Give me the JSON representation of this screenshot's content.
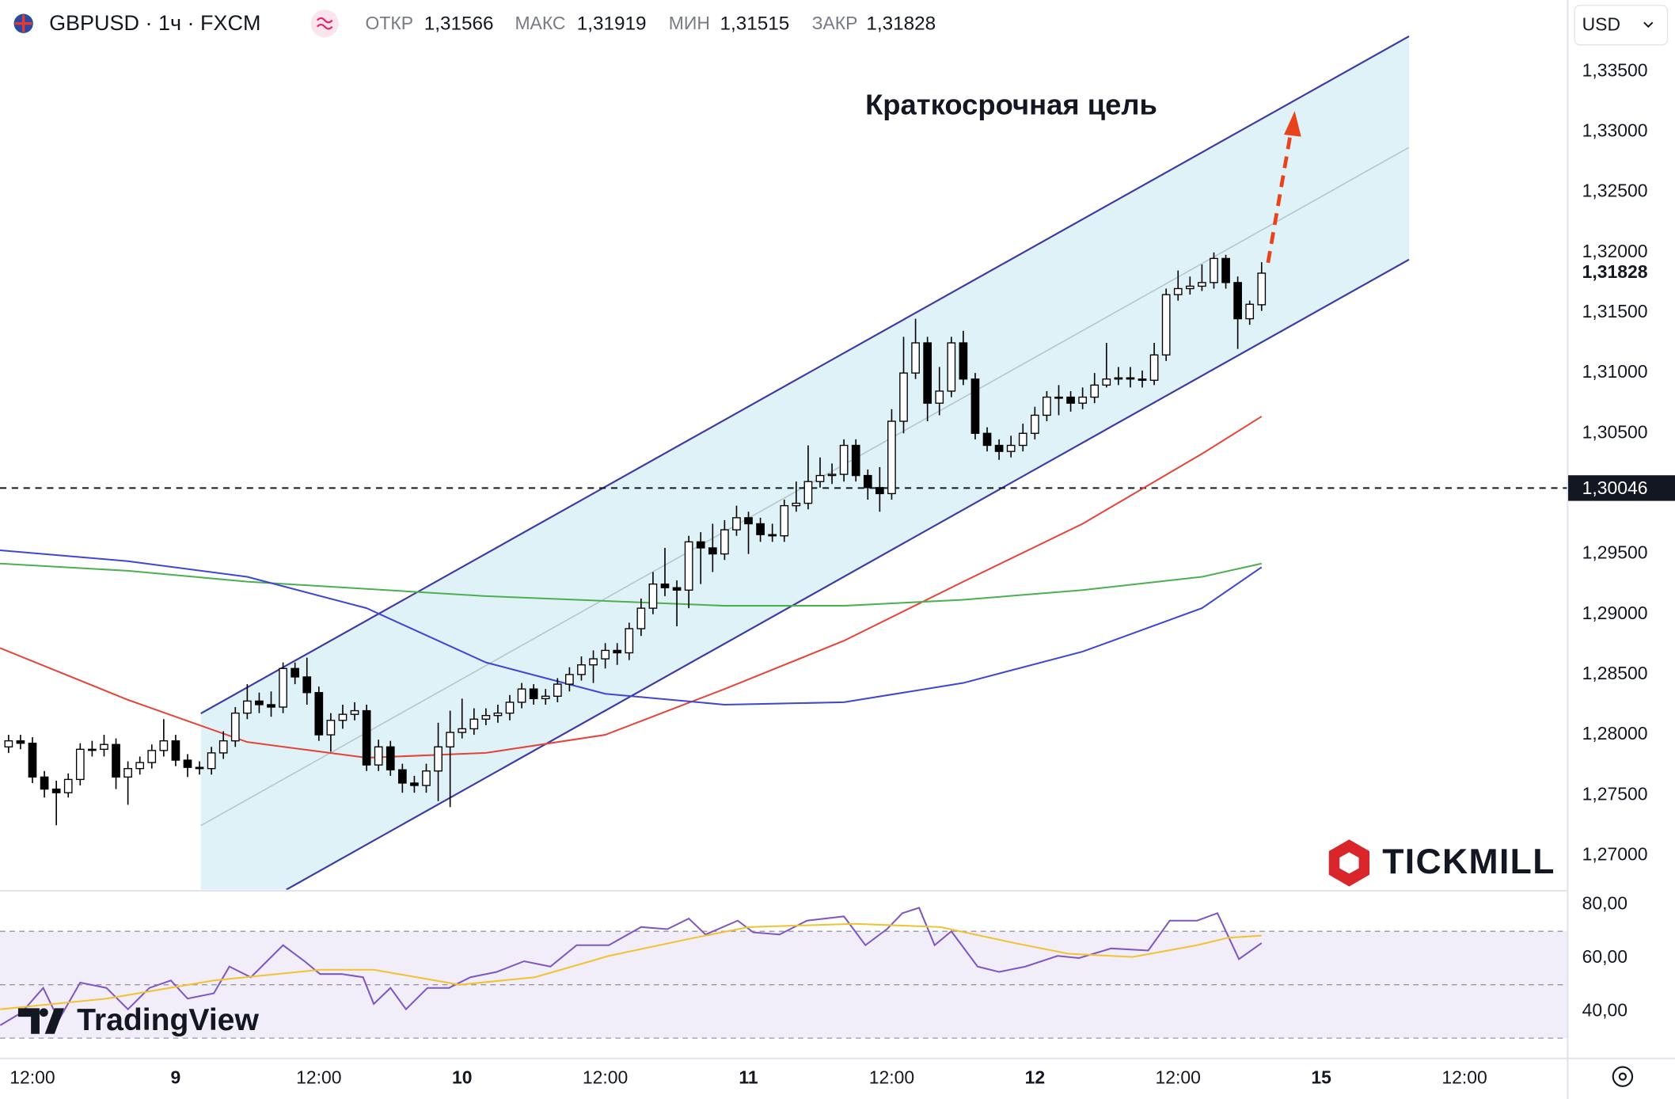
{
  "header": {
    "symbol": "GBPUSD · 1ч · FXCM",
    "ohlc": [
      {
        "label": "ОТКР",
        "value": "1,31566"
      },
      {
        "label": "МАКС",
        "value": "1,31919"
      },
      {
        "label": "МИН",
        "value": "1,31515"
      },
      {
        "label": "ЗАКР",
        "value": "1,31828"
      }
    ]
  },
  "currency": "USD",
  "watermarks": [
    "TICKMILL",
    "TradingView"
  ],
  "chart_data": {
    "type": "candlestick",
    "open": [
      1.279,
      1.2795,
      1.2793,
      1.2765,
      1.2755,
      1.2752,
      1.2763,
      1.2788,
      1.2788,
      1.2792,
      1.2765,
      1.2772,
      1.2777,
      1.2787,
      1.2795,
      1.2779,
      1.2773,
      1.2772,
      1.2785,
      1.2795,
      1.2818,
      1.2828,
      1.2825,
      1.2823,
      1.2855,
      1.2848,
      1.2835,
      1.28,
      1.2812,
      1.2817,
      1.282,
      1.2775,
      1.279,
      1.2771,
      1.276,
      1.2758,
      1.277,
      1.279,
      1.2802,
      1.2805,
      1.2813,
      1.2816,
      1.2818,
      1.2827,
      1.2838,
      1.283,
      1.2832,
      1.2842,
      1.285,
      1.2858,
      1.2863,
      1.287,
      1.2868,
      1.2888,
      1.2905,
      1.2925,
      1.2922,
      1.292,
      1.296,
      1.2955,
      1.295,
      1.297,
      1.298,
      1.2975,
      1.2966,
      1.2965,
      1.299,
      1.2992,
      1.301,
      1.3015,
      1.3016,
      1.304,
      1.3015,
      1.3005,
      1.3,
      1.306,
      1.31,
      1.3125,
      1.3075,
      1.3085,
      1.3125,
      1.3095,
      1.305,
      1.304,
      1.3035,
      1.304,
      1.305,
      1.3065,
      1.308,
      1.308,
      1.3075,
      1.308,
      1.309,
      1.3095,
      1.3096,
      1.3095,
      1.3094,
      1.3115,
      1.3165,
      1.317,
      1.3172,
      1.3175,
      1.3195,
      1.3175,
      1.3145,
      1.31566
    ],
    "high": [
      1.28,
      1.28,
      1.2798,
      1.277,
      1.2762,
      1.2768,
      1.2793,
      1.2795,
      1.28,
      1.2797,
      1.2778,
      1.2782,
      1.2792,
      1.2813,
      1.28,
      1.2784,
      1.2778,
      1.279,
      1.2803,
      1.2823,
      1.2842,
      1.2835,
      1.2836,
      1.286,
      1.286,
      1.2864,
      1.284,
      1.2818,
      1.2825,
      1.2827,
      1.2825,
      1.2796,
      1.2795,
      1.2776,
      1.2766,
      1.2776,
      1.281,
      1.282,
      1.283,
      1.2822,
      1.2822,
      1.2825,
      1.2833,
      1.2843,
      1.2842,
      1.2838,
      1.2847,
      1.2856,
      1.2865,
      1.287,
      1.2876,
      1.2876,
      1.2893,
      1.2913,
      1.2935,
      1.2955,
      1.2928,
      1.2965,
      1.2968,
      1.2975,
      1.2978,
      1.299,
      1.2985,
      1.298,
      1.2975,
      1.2995,
      1.301,
      1.304,
      1.303,
      1.3025,
      1.3045,
      1.3045,
      1.302,
      1.3022,
      1.307,
      1.313,
      1.3145,
      1.313,
      1.3105,
      1.313,
      1.3135,
      1.31,
      1.3055,
      1.3045,
      1.3048,
      1.3058,
      1.3072,
      1.3085,
      1.309,
      1.3085,
      1.3088,
      1.31,
      1.3125,
      1.3105,
      1.3105,
      1.3102,
      1.3125,
      1.317,
      1.3185,
      1.318,
      1.319,
      1.32,
      1.3198,
      1.318,
      1.316,
      1.31919
    ],
    "low": [
      1.2785,
      1.2788,
      1.276,
      1.2748,
      1.2725,
      1.2748,
      1.2758,
      1.2782,
      1.2782,
      1.2755,
      1.2742,
      1.2767,
      1.2772,
      1.2782,
      1.2774,
      1.2765,
      1.2767,
      1.2767,
      1.278,
      1.279,
      1.2813,
      1.2818,
      1.2815,
      1.2818,
      1.2842,
      1.2825,
      1.2795,
      1.2786,
      1.2805,
      1.2812,
      1.277,
      1.277,
      1.2766,
      1.2752,
      1.2752,
      1.2752,
      1.2745,
      1.274,
      1.2797,
      1.28,
      1.2808,
      1.281,
      1.2812,
      1.2822,
      1.2825,
      1.2825,
      1.2827,
      1.2836,
      1.2845,
      1.2843,
      1.2855,
      1.2858,
      1.2862,
      1.2882,
      1.29,
      1.2915,
      1.289,
      1.2905,
      1.2925,
      1.2935,
      1.2945,
      1.2965,
      1.295,
      1.296,
      1.296,
      1.296,
      1.2985,
      1.2987,
      1.3005,
      1.3008,
      1.301,
      1.301,
      1.2995,
      1.2985,
      1.2995,
      1.305,
      1.3095,
      1.306,
      1.3065,
      1.308,
      1.309,
      1.3045,
      1.3035,
      1.3028,
      1.303,
      1.3035,
      1.3045,
      1.306,
      1.3065,
      1.3068,
      1.307,
      1.3075,
      1.3088,
      1.309,
      1.3088,
      1.3088,
      1.309,
      1.311,
      1.316,
      1.3165,
      1.3168,
      1.317,
      1.317,
      1.312,
      1.314,
      1.31515
    ],
    "close": [
      1.2795,
      1.2793,
      1.2765,
      1.2755,
      1.2752,
      1.2763,
      1.2788,
      1.2788,
      1.2792,
      1.2765,
      1.2772,
      1.2777,
      1.2787,
      1.2795,
      1.2779,
      1.2773,
      1.2772,
      1.2785,
      1.2795,
      1.2818,
      1.2828,
      1.2825,
      1.2823,
      1.2855,
      1.2848,
      1.2835,
      1.28,
      1.2812,
      1.2817,
      1.282,
      1.2775,
      1.279,
      1.2771,
      1.276,
      1.2758,
      1.277,
      1.279,
      1.2802,
      1.2805,
      1.2813,
      1.2816,
      1.2818,
      1.2827,
      1.2838,
      1.283,
      1.2832,
      1.2842,
      1.285,
      1.2858,
      1.2863,
      1.287,
      1.2868,
      1.2888,
      1.2905,
      1.2925,
      1.2922,
      1.292,
      1.296,
      1.2955,
      1.295,
      1.297,
      1.298,
      1.2975,
      1.2966,
      1.2965,
      1.299,
      1.2992,
      1.301,
      1.3015,
      1.3016,
      1.304,
      1.3015,
      1.3005,
      1.3,
      1.306,
      1.31,
      1.3125,
      1.3075,
      1.3085,
      1.3125,
      1.3095,
      1.305,
      1.304,
      1.3035,
      1.304,
      1.305,
      1.3065,
      1.308,
      1.308,
      1.3075,
      1.308,
      1.309,
      1.3095,
      1.3096,
      1.3095,
      1.3094,
      1.3115,
      1.3165,
      1.317,
      1.3172,
      1.3175,
      1.3195,
      1.3175,
      1.3145,
      1.3157,
      1.31828
    ],
    "up_color": "#ffffff",
    "down_color": "#000000",
    "xlim": [
      -0.72,
      130.6
    ],
    "xticks": [
      {
        "value": 2,
        "label": "12:00"
      },
      {
        "value": 14,
        "label": "9"
      },
      {
        "value": 26,
        "label": "12:00"
      },
      {
        "value": 38,
        "label": "10"
      },
      {
        "value": 50,
        "label": "12:00"
      },
      {
        "value": 62,
        "label": "11"
      },
      {
        "value": 74,
        "label": "12:00"
      },
      {
        "value": 86,
        "label": "12"
      },
      {
        "value": 98,
        "label": "12:00"
      },
      {
        "value": 110,
        "label": "15"
      },
      {
        "value": 122,
        "label": "12:00"
      }
    ],
    "ylim": [
      1.26716,
      1.34093
    ],
    "yticks": [
      {
        "value": 1.27,
        "label": "1,27000"
      },
      {
        "value": 1.275,
        "label": "1,27500"
      },
      {
        "value": 1.28,
        "label": "1,28000"
      },
      {
        "value": 1.285,
        "label": "1,28500"
      },
      {
        "value": 1.29,
        "label": "1,29000"
      },
      {
        "value": 1.295,
        "label": "1,29500"
      },
      {
        "value": 1.3,
        "label": "1,30000"
      },
      {
        "value": 1.305,
        "label": "1,30500"
      },
      {
        "value": 1.31,
        "label": "1,31000"
      },
      {
        "value": 1.315,
        "label": "1,31500"
      },
      {
        "value": 1.32,
        "label": "1,32000"
      },
      {
        "value": 1.325,
        "label": "1,32500"
      },
      {
        "value": 1.33,
        "label": "1,33000"
      },
      {
        "value": 1.335,
        "label": "1,33500"
      }
    ],
    "indicators": [
      {
        "color": "#e5443a",
        "x": [
          -0.72,
          10,
          20,
          30,
          40,
          50,
          60,
          70,
          80,
          90,
          100,
          105
        ],
        "values": [
          1.2872,
          1.2829,
          1.2794,
          1.2781,
          1.2785,
          1.28,
          1.2838,
          1.2878,
          1.2927,
          1.2975,
          1.3033,
          1.3064
        ]
      },
      {
        "color": "#4caf50",
        "x": [
          -0.72,
          10,
          20,
          30,
          40,
          50,
          60,
          70,
          80,
          90,
          100,
          105
        ],
        "values": [
          1.2942,
          1.2936,
          1.2927,
          1.2921,
          1.2915,
          1.2911,
          1.2907,
          1.2907,
          1.2912,
          1.292,
          1.2931,
          1.2942
        ]
      },
      {
        "color": "#3f46d6",
        "x": [
          -0.72,
          10,
          20,
          30,
          40,
          50,
          60,
          70,
          80,
          90,
          100,
          105
        ],
        "values": [
          1.2953,
          1.2944,
          1.2931,
          1.2905,
          1.286,
          1.2834,
          1.2825,
          1.2827,
          1.2843,
          1.2869,
          1.2905,
          1.2939
        ]
      }
    ],
    "level": {
      "value": 1.30046,
      "label": "1,30046"
    },
    "last_price": {
      "value": 1.31828,
      "label": "1,31828"
    },
    "annotation": "Краткосрочная цель",
    "rsi": {
      "ylim": [
        22.8,
        84.8
      ],
      "yticks": [
        {
          "value": 80,
          "label": "80,00"
        },
        {
          "value": 60,
          "label": "60,00"
        },
        {
          "value": 40,
          "label": "40,00"
        }
      ],
      "bands": [
        70,
        50,
        30
      ],
      "series": [
        {
          "color": "#7e57c2",
          "x": [
            -0.7,
            1.1,
            2.9,
            4.2,
            6.0,
            8.2,
            10.0,
            11.8,
            13.6,
            15.0,
            17.2,
            18.5,
            20.3,
            23.0,
            24.8,
            26.1,
            27.9,
            29.7,
            30.6,
            32.0,
            33.3,
            35.1,
            36.9,
            38.7,
            40.9,
            43.2,
            45.4,
            47.6,
            50.3,
            53.0,
            55.2,
            57.0,
            58.4,
            61.1,
            62.4,
            64.6,
            66.9,
            70.0,
            71.8,
            73.6,
            74.9,
            76.3,
            77.6,
            79.0,
            81.2,
            83.0,
            85.2,
            87.9,
            89.7,
            92.4,
            95.5,
            97.3,
            99.6,
            101.3,
            103.1,
            105
          ],
          "values": [
            34.8,
            39.6,
            48.8,
            36.8,
            50.8,
            48.8,
            40.8,
            48.8,
            51.6,
            44.8,
            46.8,
            56.8,
            52.8,
            64.8,
            58.8,
            54.0,
            54.0,
            52.8,
            42.8,
            48.8,
            40.8,
            48.8,
            48.8,
            52.8,
            54.8,
            58.8,
            56.8,
            64.8,
            64.8,
            71.6,
            70.8,
            74.8,
            68.8,
            74.0,
            69.6,
            68.8,
            74.0,
            75.6,
            64.8,
            70.8,
            76.8,
            78.8,
            64.8,
            70.0,
            56.8,
            54.8,
            56.8,
            60.8,
            60.0,
            63.6,
            62.8,
            74.0,
            74.0,
            76.8,
            59.6,
            65.6
          ]
        },
        {
          "color": "#f2c230",
          "x": [
            -0.7,
            8.2,
            17.2,
            26.1,
            30.6,
            37.8,
            44.1,
            50.3,
            57.5,
            62.0,
            70.9,
            78.1,
            84.3,
            88.8,
            94.2,
            99.6,
            102.2,
            105
          ],
          "values": [
            40.8,
            44.8,
            51.6,
            55.6,
            55.6,
            50.0,
            52.8,
            60.8,
            67.6,
            71.6,
            72.8,
            71.6,
            65.6,
            61.6,
            60.4,
            64.8,
            67.6,
            68.4
          ]
        }
      ]
    }
  }
}
